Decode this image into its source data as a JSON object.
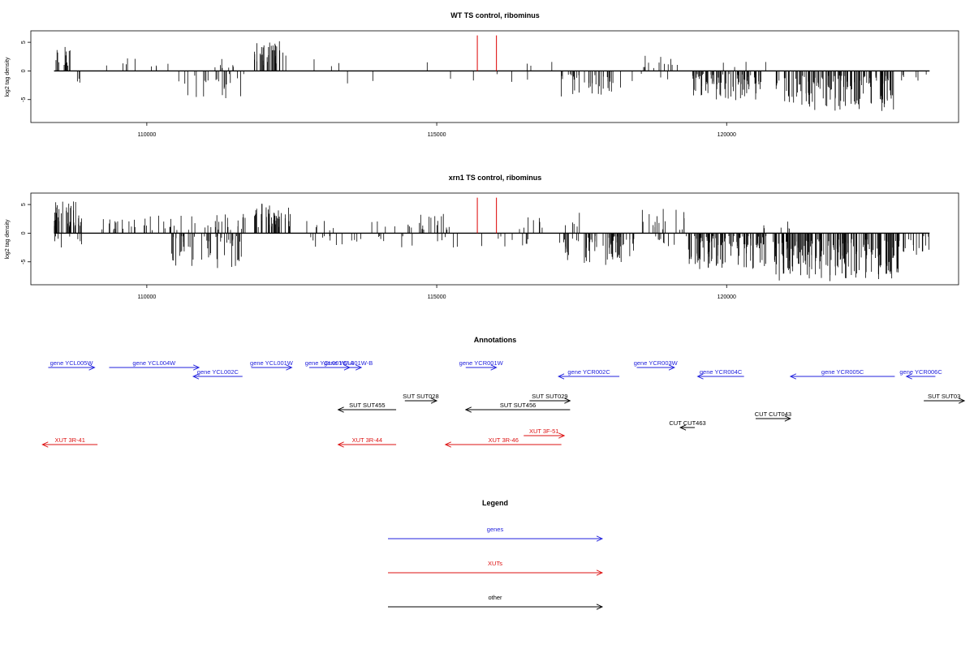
{
  "chart_data": [
    {
      "type": "bar",
      "title": "WT TS control, ribominus",
      "xlabel": "",
      "ylabel": "log2 tag density",
      "xlim": [
        108000,
        124000
      ],
      "ylim": [
        -9,
        7
      ],
      "yticks": [
        -5,
        0,
        5
      ],
      "xticks": [
        110000,
        115000,
        120000
      ],
      "grid": false,
      "highlight_x": [
        115700,
        116030
      ],
      "highlight_y": 6.2,
      "highlight_color": "#dd0000",
      "plus_regions": [
        {
          "x": [
            108400,
            108700
          ],
          "ymin": 0.5,
          "ymax": 4.2,
          "n": 14
        },
        {
          "x": [
            109100,
            110400
          ],
          "ymin": 0.5,
          "ymax": 2.5,
          "n": 9
        },
        {
          "x": [
            111000,
            111700
          ],
          "ymin": 0.5,
          "ymax": 2.2,
          "n": 8
        },
        {
          "x": [
            111850,
            112400
          ],
          "ymin": 1.0,
          "ymax": 5.2,
          "n": 36
        },
        {
          "x": [
            112500,
            113700
          ],
          "ymin": 0.5,
          "ymax": 3.0,
          "n": 3
        },
        {
          "x": [
            114800,
            114900
          ],
          "ymin": 1.0,
          "ymax": 2.8,
          "n": 1
        },
        {
          "x": [
            116500,
            117000
          ],
          "ymin": 0.5,
          "ymax": 2.2,
          "n": 3
        },
        {
          "x": [
            118500,
            119200
          ],
          "ymin": 0.5,
          "ymax": 3.0,
          "n": 12
        },
        {
          "x": [
            119800,
            121300
          ],
          "ymin": 0.5,
          "ymax": 1.6,
          "n": 4
        }
      ],
      "minus_regions": [
        {
          "x": [
            108600,
            109400
          ],
          "ymin": 0.5,
          "ymax": 2.5,
          "n": 3
        },
        {
          "x": [
            110500,
            111700
          ],
          "ymin": 0.5,
          "ymax": 4.8,
          "n": 22
        },
        {
          "x": [
            113000,
            114500
          ],
          "ymin": 0.5,
          "ymax": 2.8,
          "n": 2
        },
        {
          "x": [
            115200,
            116700
          ],
          "ymin": 0.5,
          "ymax": 2.0,
          "n": 5
        },
        {
          "x": [
            117100,
            118200
          ],
          "ymin": 0.5,
          "ymax": 4.5,
          "n": 35
        },
        {
          "x": [
            118300,
            119000
          ],
          "ymin": 0.5,
          "ymax": 1.8,
          "n": 4
        },
        {
          "x": [
            119400,
            120600
          ],
          "ymin": 0.5,
          "ymax": 5.2,
          "n": 75
        },
        {
          "x": [
            120850,
            122900
          ],
          "ymin": 0.8,
          "ymax": 7.0,
          "n": 130
        },
        {
          "x": [
            123000,
            123500
          ],
          "ymin": 0.5,
          "ymax": 1.8,
          "n": 6
        }
      ]
    },
    {
      "type": "bar",
      "title": "xrn1 TS control, ribominus",
      "xlabel": "",
      "ylabel": "log2 tag density",
      "xlim": [
        108000,
        124000
      ],
      "ylim": [
        -9,
        7
      ],
      "yticks": [
        -5,
        0,
        5
      ],
      "xticks": [
        110000,
        115000,
        120000
      ],
      "grid": false,
      "highlight_x": [
        115700,
        116030
      ],
      "highlight_y": 6.2,
      "highlight_color": "#dd0000",
      "plus_regions": [
        {
          "x": [
            108400,
            108900
          ],
          "ymin": 1.0,
          "ymax": 6.2,
          "n": 40
        },
        {
          "x": [
            109200,
            110500
          ],
          "ymin": 0.5,
          "ymax": 3.2,
          "n": 28
        },
        {
          "x": [
            110500,
            111700
          ],
          "ymin": 0.5,
          "ymax": 3.5,
          "n": 24
        },
        {
          "x": [
            111850,
            112500
          ],
          "ymin": 1.0,
          "ymax": 5.3,
          "n": 40
        },
        {
          "x": [
            112700,
            114700
          ],
          "ymin": 0.5,
          "ymax": 2.5,
          "n": 14
        },
        {
          "x": [
            114700,
            115400
          ],
          "ymin": 0.5,
          "ymax": 3.5,
          "n": 16
        },
        {
          "x": [
            116200,
            117500
          ],
          "ymin": 0.5,
          "ymax": 3.8,
          "n": 12
        },
        {
          "x": [
            118400,
            119300
          ],
          "ymin": 0.5,
          "ymax": 4.8,
          "n": 16
        },
        {
          "x": [
            120600,
            121100
          ],
          "ymin": 0.5,
          "ymax": 2.5,
          "n": 6
        }
      ],
      "minus_regions": [
        {
          "x": [
            108400,
            108900
          ],
          "ymin": 0.5,
          "ymax": 2.6,
          "n": 8
        },
        {
          "x": [
            110400,
            111700
          ],
          "ymin": 0.5,
          "ymax": 6.3,
          "n": 50
        },
        {
          "x": [
            112800,
            114700
          ],
          "ymin": 0.5,
          "ymax": 2.5,
          "n": 20
        },
        {
          "x": [
            114800,
            116600
          ],
          "ymin": 0.5,
          "ymax": 2.5,
          "n": 14
        },
        {
          "x": [
            117100,
            118400
          ],
          "ymin": 0.5,
          "ymax": 5.8,
          "n": 60
        },
        {
          "x": [
            118500,
            119100
          ],
          "ymin": 0.5,
          "ymax": 2.5,
          "n": 8
        },
        {
          "x": [
            119300,
            120700
          ],
          "ymin": 0.5,
          "ymax": 6.3,
          "n": 110
        },
        {
          "x": [
            120800,
            123000
          ],
          "ymin": 1.0,
          "ymax": 8.4,
          "n": 180
        },
        {
          "x": [
            123000,
            123500
          ],
          "ymin": 0.5,
          "ymax": 3.8,
          "n": 16
        }
      ]
    }
  ],
  "annotations": {
    "title": "Annotations",
    "xlim": [
      108000,
      124000
    ],
    "colors": {
      "gene": "#2222dd",
      "xut": "#dd1111",
      "other": "#000000"
    },
    "features": [
      {
        "label": "gene YCL005W",
        "start": 108300,
        "end": 109100,
        "strand": "+",
        "row": 1,
        "kind": "gene"
      },
      {
        "label": "gene YCL004W",
        "start": 109350,
        "end": 110900,
        "strand": "+",
        "row": 1,
        "kind": "gene"
      },
      {
        "label": "gene YCL002C",
        "start": 110800,
        "end": 111650,
        "strand": "-",
        "row": 2,
        "kind": "gene"
      },
      {
        "label": "gene YCL001W",
        "start": 111800,
        "end": 112500,
        "strand": "+",
        "row": 1,
        "kind": "gene"
      },
      {
        "label": "gene YCL001W-A",
        "start": 112800,
        "end": 113500,
        "strand": "+",
        "row": 1,
        "kind": "gene"
      },
      {
        "label": "gene YCL001W-B",
        "start": 113250,
        "end": 113700,
        "strand": "+",
        "row": 1,
        "kind": "gene"
      },
      {
        "label": "gene YCR001W",
        "start": 115500,
        "end": 116030,
        "strand": "+",
        "row": 1,
        "kind": "gene"
      },
      {
        "label": "gene YCR002C",
        "start": 117100,
        "end": 118150,
        "strand": "-",
        "row": 2,
        "kind": "gene"
      },
      {
        "label": "gene YCR003W",
        "start": 118450,
        "end": 119100,
        "strand": "+",
        "row": 1,
        "kind": "gene"
      },
      {
        "label": "gene YCR004C",
        "start": 119500,
        "end": 120300,
        "strand": "-",
        "row": 2,
        "kind": "gene"
      },
      {
        "label": "gene YCR005C",
        "start": 121100,
        "end": 122900,
        "strand": "-",
        "row": 2,
        "kind": "gene"
      },
      {
        "label": "gene YCR006C",
        "start": 123100,
        "end": 123600,
        "strand": "-",
        "row": 2,
        "kind": "gene"
      },
      {
        "label": "SUT SUT455",
        "start": 113300,
        "end": 114300,
        "strand": "-",
        "row": 4,
        "kind": "other"
      },
      {
        "label": "SUT SUT028",
        "start": 114450,
        "end": 115000,
        "strand": "+",
        "row": 3,
        "kind": "other"
      },
      {
        "label": "SUT SUT456",
        "start": 115500,
        "end": 117300,
        "strand": "-",
        "row": 4,
        "kind": "other"
      },
      {
        "label": "SUT SUT029",
        "start": 116600,
        "end": 117300,
        "strand": "+",
        "row": 3,
        "kind": "other"
      },
      {
        "label": "SUT SUT03",
        "start": 123400,
        "end": 124100,
        "strand": "+",
        "row": 3,
        "kind": "other"
      },
      {
        "label": "CUT CUT463",
        "start": 119200,
        "end": 119450,
        "strand": "-",
        "row": 6,
        "kind": "other"
      },
      {
        "label": "CUT CUT043",
        "start": 120500,
        "end": 121100,
        "strand": "+",
        "row": 5,
        "kind": "other"
      },
      {
        "label": "XUT 3F-51",
        "start": 116500,
        "end": 117200,
        "strand": "+",
        "row": 7,
        "kind": "xut"
      },
      {
        "label": "XUT 3R-41",
        "start": 108200,
        "end": 109150,
        "strand": "-",
        "row": 8,
        "kind": "xut"
      },
      {
        "label": "XUT 3R-44",
        "start": 113300,
        "end": 114300,
        "strand": "-",
        "row": 8,
        "kind": "xut"
      },
      {
        "label": "XUT 3R-46",
        "start": 115150,
        "end": 117150,
        "strand": "-",
        "row": 8,
        "kind": "xut"
      }
    ]
  },
  "legend": {
    "title": "Legend",
    "items": [
      {
        "label": "genes",
        "color": "#2222dd"
      },
      {
        "label": "XUTs",
        "color": "#dd1111"
      },
      {
        "label": "other",
        "color": "#000000"
      }
    ]
  }
}
